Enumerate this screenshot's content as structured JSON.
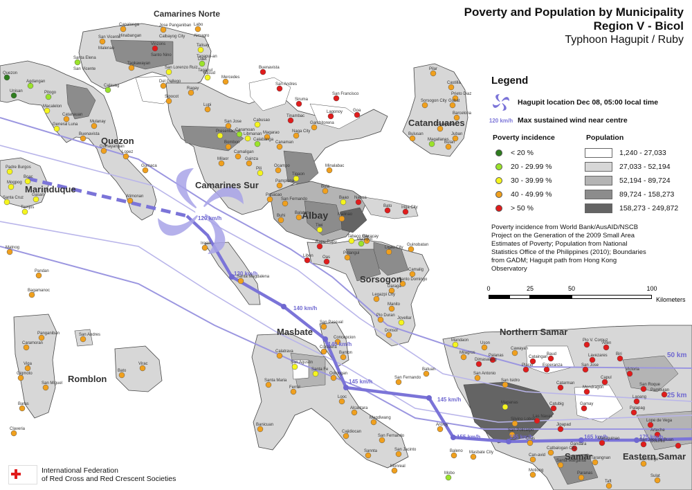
{
  "title": {
    "line1": "Poverty and Population by Municipality",
    "line2": "Region V - Bicol",
    "line3": "Typhoon Hagupit / Ruby"
  },
  "legend": {
    "heading": "Legend",
    "hagupit_location": "Hagupit location Dec 08, 05:00 local time",
    "wind_symbol": "120 km/h",
    "wind_label": "Max sustained wind near centre",
    "poverty_heading": "Poverty incidence",
    "poverty": [
      {
        "label": "< 20 %",
        "color": "#2e7d1e"
      },
      {
        "label": "20 - 29.99 %",
        "color": "#9be32b"
      },
      {
        "label": "30 - 39.99 %",
        "color": "#f5f51e"
      },
      {
        "label": "40 - 49.99 %",
        "color": "#f0a01e"
      },
      {
        "label": "> 50 %",
        "color": "#e01c1c"
      }
    ],
    "population_heading": "Population",
    "population": [
      {
        "label": "1,240 - 27,033",
        "color": "#ffffff"
      },
      {
        "label": "27,033 - 52,194",
        "color": "#d7d7d7"
      },
      {
        "label": "52,194 - 89,724",
        "color": "#b4b4b4"
      },
      {
        "label": "89,724 - 158,273",
        "color": "#8c8c8c"
      },
      {
        "label": "158,273 - 249,872",
        "color": "#646464"
      }
    ],
    "source_note": "Poverty incidence from World Bank/AusAID/NSCB Project on the Generation of the 2009 Small Area Estimates of Poverty; Population from National Statistics Office of the Philippines (2010); Boundaries from GADM; Hagupit path from Hong Kong Observatory"
  },
  "scale": {
    "ticks": [
      "0",
      "25",
      "50",
      "100"
    ],
    "unit": "Kilometers"
  },
  "org": {
    "line1": "International Federation",
    "line2": "of Red Cross and Red Crescent Societies"
  },
  "regions": [
    {
      "label": "Camarines Norte"
    },
    {
      "label": "Quezon"
    },
    {
      "label": "Marinduque"
    },
    {
      "label": "Camarines Sur"
    },
    {
      "label": "Albay"
    },
    {
      "label": "Catanduanes"
    },
    {
      "label": "Sorsogon"
    },
    {
      "label": "Masbate"
    },
    {
      "label": "Romblon"
    },
    {
      "label": "Northern Samar"
    },
    {
      "label": "Samar"
    },
    {
      "label": "Eastern Samar"
    }
  ],
  "wind_labels": [
    "120 km/h",
    "130 km/h",
    "140 km/h",
    "140 km/h",
    "145 km/h",
    "145 km/h",
    "155 km/h",
    "155 km/h",
    "165 km/h",
    "175 km/h"
  ],
  "buffer_labels": [
    "50 km",
    "25 km"
  ],
  "towns": [
    "Capalonga",
    "Jose Panganiban",
    "Labo",
    "Vinzons",
    "Talisay",
    "Daet",
    "San Vicente",
    "Santa Elena",
    "Calauag",
    "Tagkawayan",
    "San Lorenzo Ruiz",
    "Basud",
    "Mercedes",
    "Del Gallego",
    "Ragay",
    "Lupi",
    "Sipocot",
    "Quezon",
    "Agdangan",
    "Unisan",
    "Pitogo",
    "Macalelon",
    "General Luna",
    "Catanauan",
    "Mulanay",
    "Buenavista",
    "Guinayangan",
    "Lopez",
    "Gumaca",
    "Atimonan",
    "Padre Burgos",
    "Mogpog",
    "Boac",
    "Santa Cruz",
    "Gasan",
    "Torrijos",
    "Buenavista",
    "San Andres",
    "San Francisco",
    "Siruma",
    "Tinambac",
    "Garchitorena",
    "Lagonoy",
    "Goa",
    "San Jose",
    "Presentacion",
    "Caramoan",
    "Cabusao",
    "Libmanan",
    "Bombon",
    "Calabanga",
    "Magarao",
    "Canaman",
    "Naga City",
    "Camaligan",
    "Milaor",
    "Gainza",
    "Pili",
    "Ocampo",
    "Tigaon",
    "Pamplona",
    "Pasacao",
    "San Fernando",
    "Minalabac",
    "Bula",
    "Baao",
    "Nabua",
    "Bato",
    "Iriga City",
    "Buhi",
    "Balatan",
    "Tiwi",
    "Malinao",
    "Tabaco City",
    "Malilipot",
    "Bacacay",
    "Rapu-Rapu",
    "Libon",
    "Oas",
    "Polangui",
    "Ligao City",
    "Guinobatan",
    "Camalig",
    "Santo Domingo",
    "Daraga",
    "Legazpi City",
    "Manito",
    "Pio Duran",
    "Jovellar",
    "Donsol",
    "Pilar",
    "Castilla",
    "Prieto Diaz",
    "Sorsogon City",
    "Gubat",
    "Barcelona",
    "Casiguran",
    "Juban",
    "Bulusan",
    "Magallanes",
    "Bulan",
    "Irosin",
    "Santa Magdalena",
    "Matnog",
    "Pandan",
    "Bagamanoc",
    "Panganiban",
    "Caramoran",
    "Viga",
    "Gigmoto",
    "San Miguel",
    "Baras",
    "San Andres",
    "Virac",
    "Bato",
    "Claveria",
    "San Pascual",
    "Concepcion",
    "Banton",
    "Corcuera",
    "Calatrava",
    "San Agustin",
    "Santa Fe",
    "Odiongan",
    "Santa Maria",
    "Ferrol",
    "Looc",
    "Alcantara",
    "Magdiwang",
    "Cajidiocan",
    "San Fernando",
    "Banicuan",
    "Sannta",
    "San Jacinto",
    "Monreal",
    "San Fernando",
    "Batuan",
    "Aroroy",
    "Baleno",
    "Masbate City",
    "Mobo",
    "Mandaon",
    "Milagros",
    "Uson",
    "Dimasalang",
    "Palanas",
    "Cawayan",
    "Cataingan",
    "Baud",
    "Placer",
    "Esperanza",
    "Pio V. Corpuz",
    "Allen",
    "Lavezares",
    "Biri",
    "San Jose",
    "Victoria",
    "Capul",
    "San Antonio",
    "San Isidro",
    "Catarman",
    "Mondragon",
    "San Roque",
    "Pambujan",
    "Laoang",
    "Mapanas",
    "Catubig",
    "Gamay",
    "Palapag",
    "Lope de Vega",
    "Silvino Lobos",
    "Las Navas",
    "Jipapad",
    "Arteche",
    "San Policarpo",
    "Oras",
    "Catbalogan City",
    "Gandara",
    "Matuguinao",
    "San Jose de Buan",
    "Dolores",
    "Can-avid",
    "Santa Margarita",
    "Tarangnan",
    "San Jorge",
    "Motiong",
    "Paranas",
    "Taft",
    "Sulat",
    "Hinabangan",
    "Calbayog City",
    "Almagro",
    "Santo Nino",
    "Tagapul-an",
    "Tagapul",
    "Malenao",
    "San Vicente"
  ]
}
